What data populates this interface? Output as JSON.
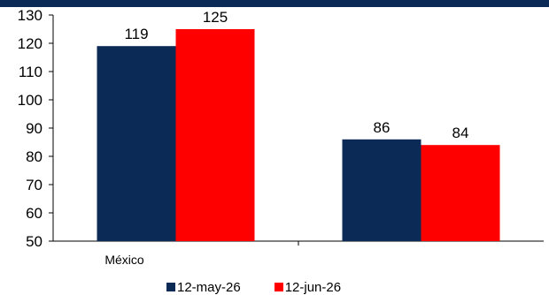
{
  "colors": {
    "band": "#0b2a55",
    "series1": "#0b2a55",
    "series2": "#ff0000"
  },
  "chart_data": {
    "type": "bar",
    "title": "",
    "xlabel": "",
    "ylabel": "",
    "ylim": [
      50,
      130
    ],
    "yticks": [
      50,
      60,
      70,
      80,
      90,
      100,
      110,
      120,
      130
    ],
    "categories": [
      "México",
      ""
    ],
    "series": [
      {
        "name": "12-may-26",
        "values": [
          119,
          86
        ],
        "labels": [
          "119",
          "86"
        ]
      },
      {
        "name": "12-jun-26",
        "values": [
          125,
          84
        ],
        "labels": [
          "125",
          "84"
        ]
      }
    ],
    "legend": "bottom"
  }
}
